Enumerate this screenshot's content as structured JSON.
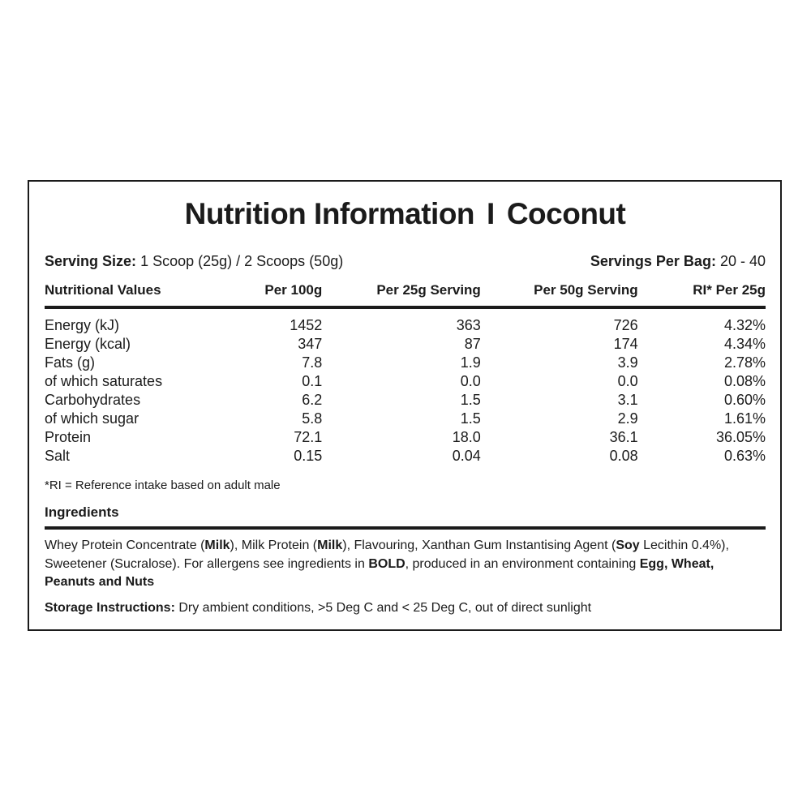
{
  "label": {
    "title": {
      "main": "Nutrition Information",
      "separator": "I",
      "flavor": "Coconut"
    },
    "serving": {
      "size_label": "Serving Size:",
      "size_value": "1 Scoop (25g) / 2 Scoops (50g)",
      "per_bag_label": "Servings Per Bag:",
      "per_bag_value": "20 - 40"
    },
    "table": {
      "columns": [
        "Nutritional Values",
        "Per 100g",
        "Per 25g Serving",
        "Per 50g Serving",
        "RI* Per 25g"
      ],
      "rows": [
        {
          "name": "Energy (kJ)",
          "per_100g": "1452",
          "per_25g": "363",
          "per_50g": "726",
          "ri_per_25g": "4.32%"
        },
        {
          "name": "Energy (kcal)",
          "per_100g": "347",
          "per_25g": "87",
          "per_50g": "174",
          "ri_per_25g": "4.34%"
        },
        {
          "name": "Fats (g)",
          "per_100g": "7.8",
          "per_25g": "1.9",
          "per_50g": "3.9",
          "ri_per_25g": "2.78%"
        },
        {
          "name": "of which saturates",
          "per_100g": "0.1",
          "per_25g": "0.0",
          "per_50g": "0.0",
          "ri_per_25g": "0.08%"
        },
        {
          "name": "Carbohydrates",
          "per_100g": "6.2",
          "per_25g": "1.5",
          "per_50g": "3.1",
          "ri_per_25g": "0.60%"
        },
        {
          "name": "of which sugar",
          "per_100g": "5.8",
          "per_25g": "1.5",
          "per_50g": "2.9",
          "ri_per_25g": "1.61%"
        },
        {
          "name": "Protein",
          "per_100g": "72.1",
          "per_25g": "18.0",
          "per_50g": "36.1",
          "ri_per_25g": "36.05%"
        },
        {
          "name": "Salt",
          "per_100g": "0.15",
          "per_25g": "0.04",
          "per_50g": "0.08",
          "ri_per_25g": "0.63%"
        }
      ]
    },
    "ri_note": "*RI = Reference intake based on adult male",
    "ingredients": {
      "heading": "Ingredients",
      "segments": [
        {
          "text": "Whey Protein Concentrate (",
          "bold": false
        },
        {
          "text": "Milk",
          "bold": true
        },
        {
          "text": "), Milk Protein (",
          "bold": false
        },
        {
          "text": "Milk",
          "bold": true
        },
        {
          "text": "), Flavouring, Xanthan Gum Instantising Agent (",
          "bold": false
        },
        {
          "text": "Soy",
          "bold": true
        },
        {
          "text": " Lecithin 0.4%), Sweetener (Sucralose). For allergens see ingredients in ",
          "bold": false
        },
        {
          "text": "BOLD",
          "bold": true
        },
        {
          "text": ", produced in an environment containing ",
          "bold": false
        },
        {
          "text": "Egg, Wheat, Peanuts and Nuts",
          "bold": true
        }
      ]
    },
    "storage": {
      "label": "Storage Instructions:",
      "value": " Dry ambient conditions, >5 Deg C and < 25 Deg C,  out of direct sunlight"
    }
  }
}
